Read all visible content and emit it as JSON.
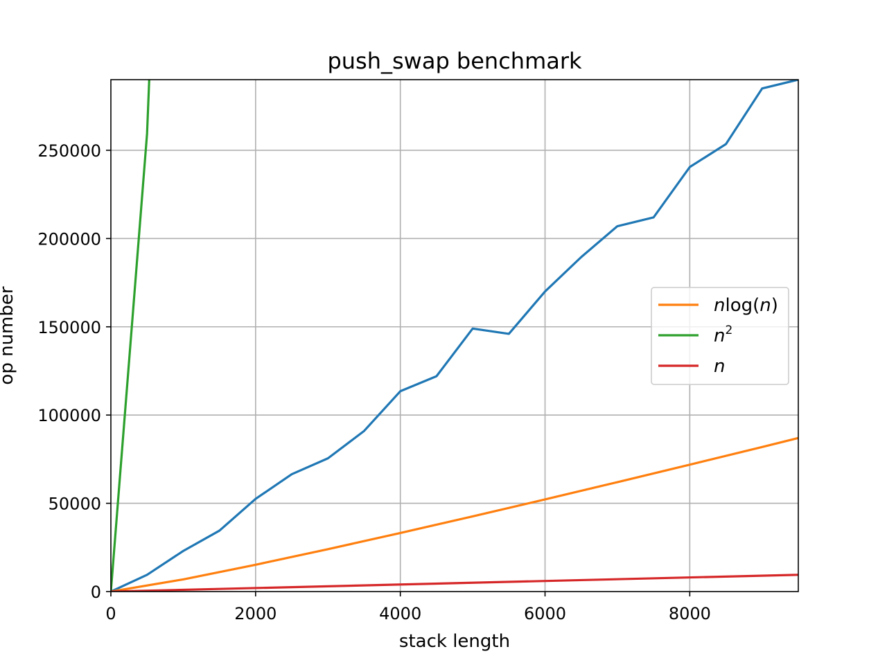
{
  "chart_data": {
    "type": "line",
    "title": "push_swap benchmark",
    "xlabel": "stack length",
    "ylabel": "op number",
    "xlim": [
      0,
      9500
    ],
    "ylim": [
      0,
      290000
    ],
    "xticks": [
      0,
      2000,
      4000,
      6000,
      8000
    ],
    "yticks": [
      0,
      50000,
      100000,
      150000,
      200000,
      250000
    ],
    "grid": true,
    "legend_position": "center-right",
    "series": [
      {
        "name": "",
        "color": "#1f77b4",
        "x": [
          0,
          500,
          1000,
          1500,
          2000,
          2500,
          3000,
          3500,
          4000,
          4500,
          5000,
          5500,
          6000,
          6500,
          7000,
          7500,
          8000,
          8500,
          9000,
          9500
        ],
        "y": [
          0,
          9500,
          23000,
          34500,
          52500,
          66500,
          75500,
          91000,
          113500,
          122000,
          149000,
          146000,
          170000,
          189500,
          207000,
          212000,
          240500,
          253500,
          285000,
          290000
        ]
      },
      {
        "name": "nlog(n)",
        "name_parts": {
          "n": "n",
          "log": "log(",
          "arg": "n",
          "close": ")"
        },
        "color": "#ff7f0e",
        "x": [
          0,
          1000,
          2000,
          3000,
          4000,
          5000,
          6000,
          7000,
          8000,
          9000,
          9500
        ],
        "y": [
          0,
          6900,
          15200,
          24000,
          33200,
          42600,
          52200,
          62000,
          71900,
          81900,
          87000
        ]
      },
      {
        "name": "n^2",
        "name_parts": {
          "base": "n",
          "exp": "2"
        },
        "color": "#2ca02c",
        "x": [
          0,
          100,
          200,
          300,
          400,
          500,
          530
        ],
        "y": [
          0,
          51900,
          103800,
          155600,
          207500,
          259400,
          290000
        ]
      },
      {
        "name": "n",
        "name_parts": {
          "base": "n"
        },
        "color": "#d62728",
        "x": [
          0,
          9500
        ],
        "y": [
          0,
          9500
        ]
      }
    ]
  }
}
